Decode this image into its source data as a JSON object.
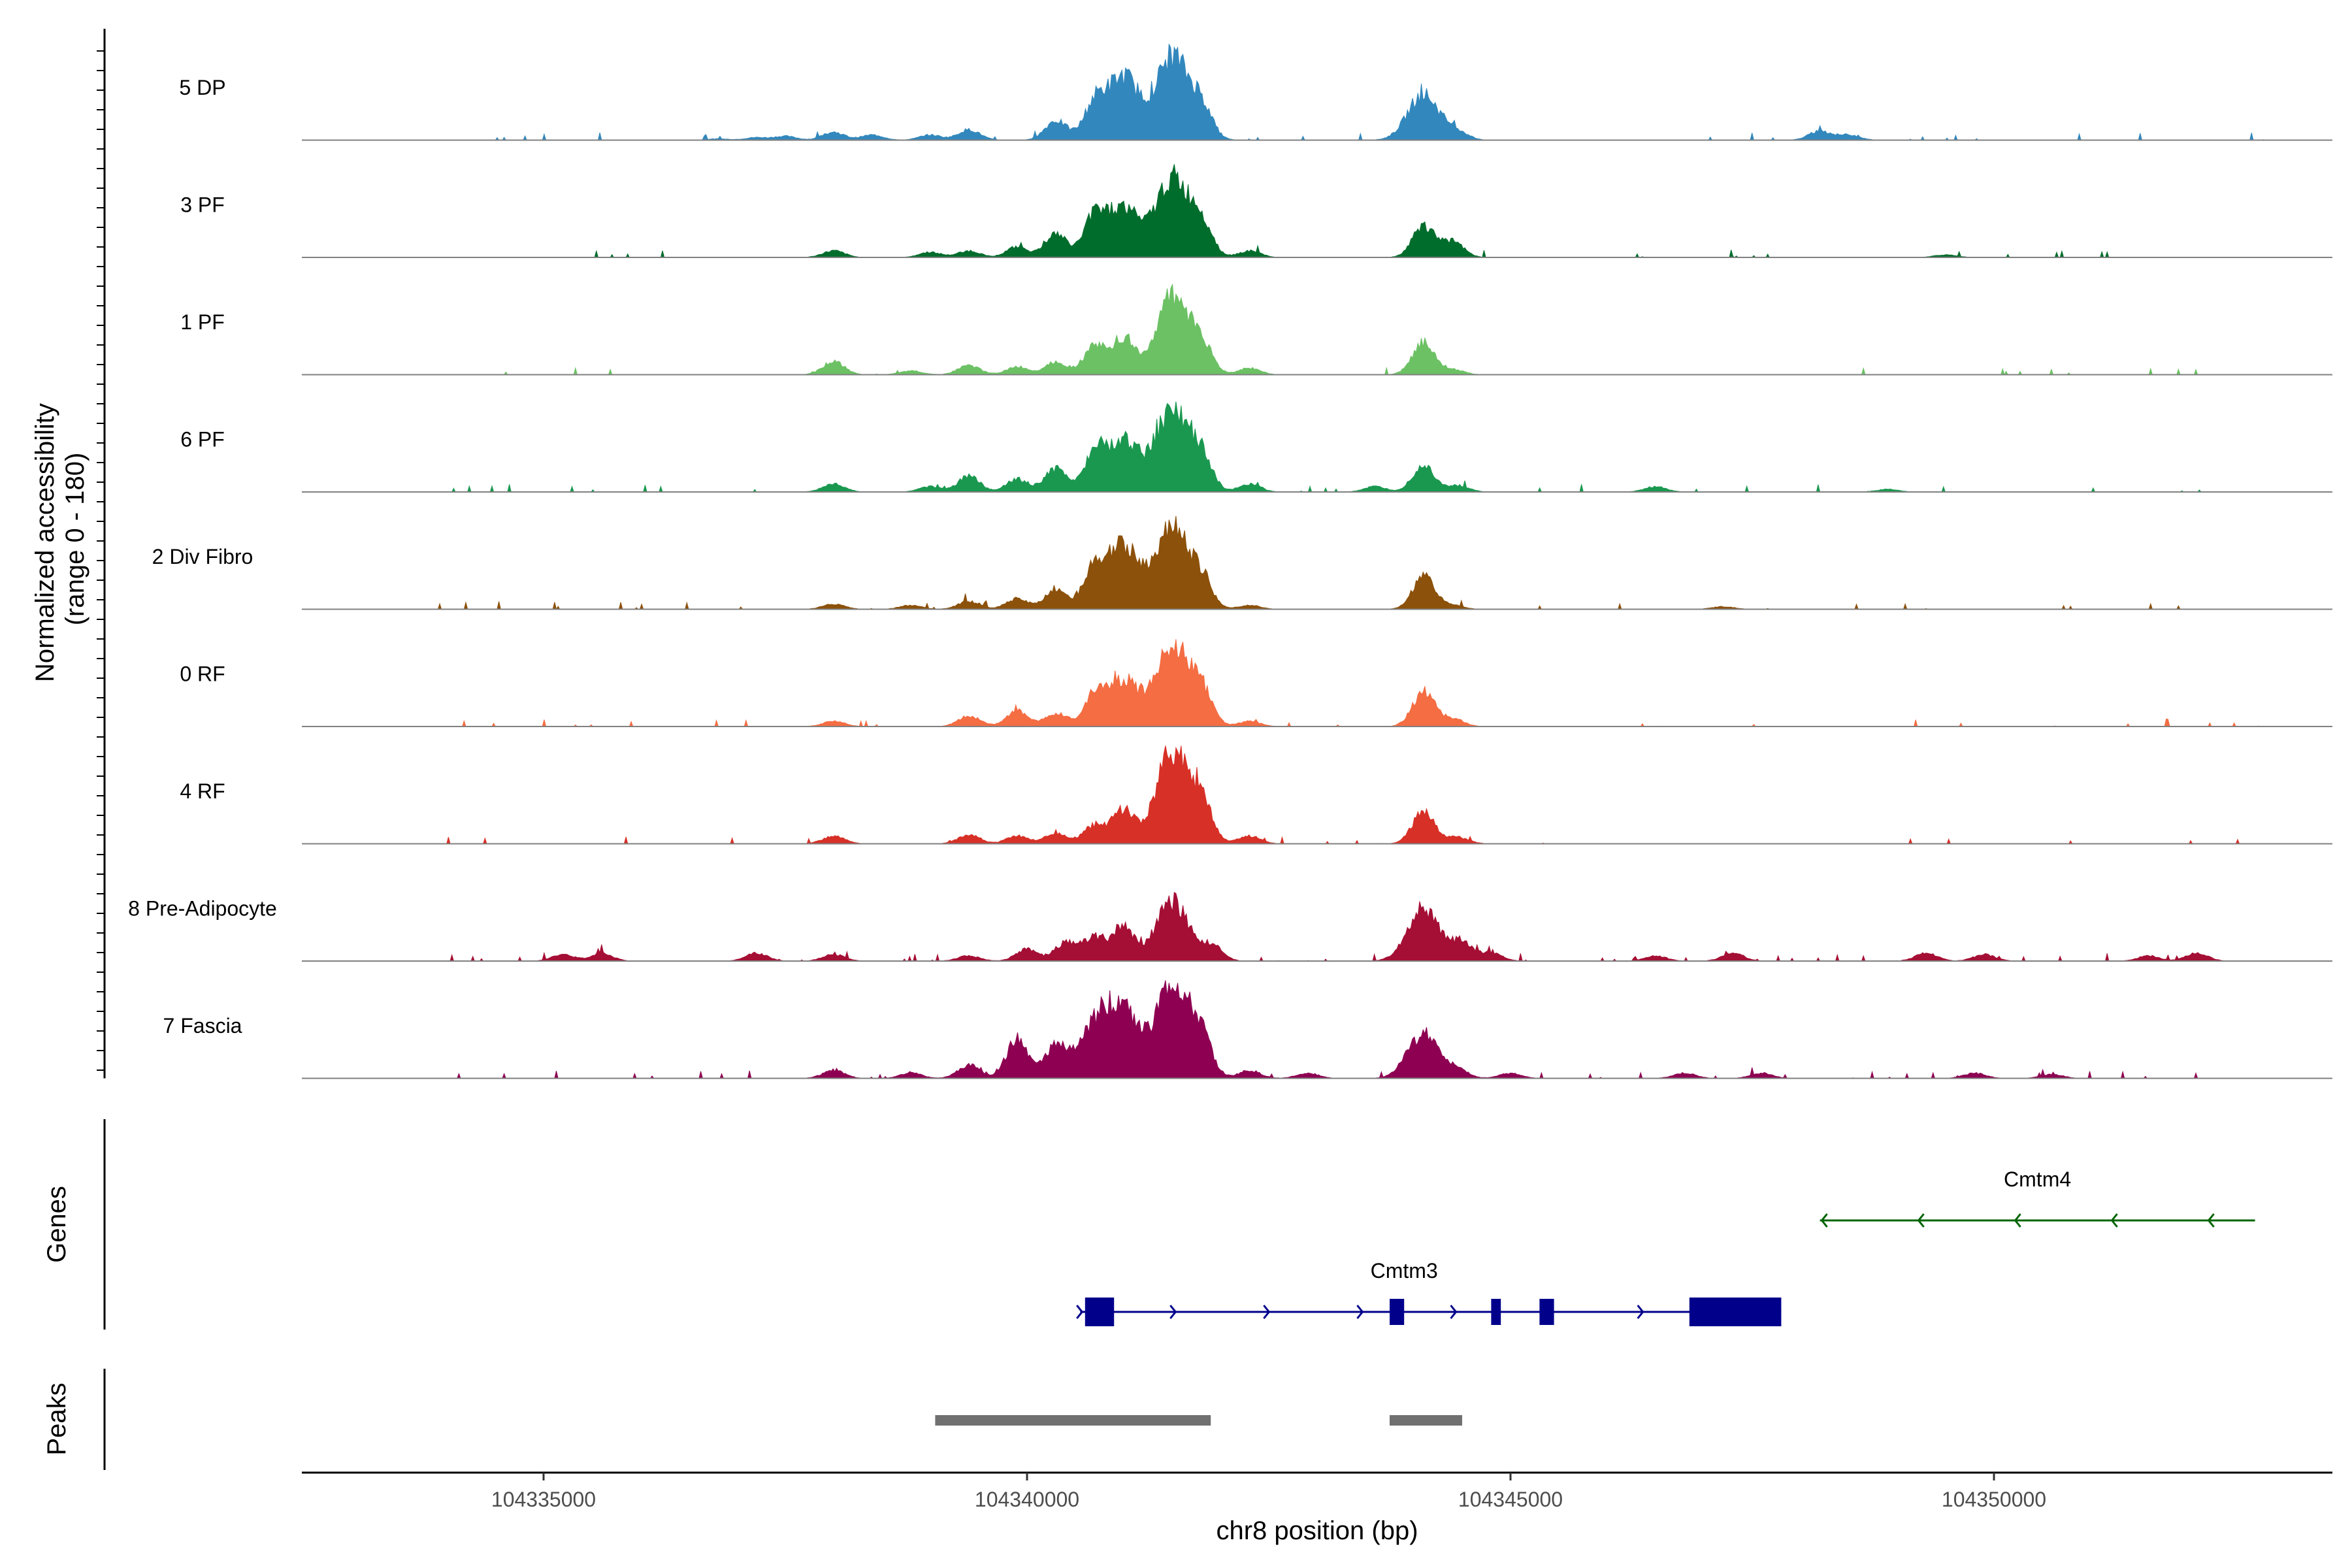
{
  "chart_data": {
    "type": "area",
    "title": "",
    "ylabel_line1": "Normalized accessibility",
    "ylabel_line2": "(range 0 - 180)",
    "y_range": [
      0,
      180
    ],
    "xlabel": "chr8 position (bp)",
    "xlim": [
      104332500,
      104353500
    ],
    "x_ticks": [
      104335000,
      104340000,
      104345000,
      104350000
    ],
    "x_tick_labels": [
      "104335000",
      "104340000",
      "104345000",
      "104350000"
    ],
    "tracks": [
      {
        "name": "5 DP",
        "color": "#3288bd",
        "noise": 0.025,
        "peaks": [
          [
            104336800,
            1
          ],
          [
            104337200,
            2
          ],
          [
            104337500,
            3
          ],
          [
            104338000,
            6
          ],
          [
            104338400,
            4
          ],
          [
            104339000,
            4
          ],
          [
            104339400,
            8
          ],
          [
            104340300,
            15
          ],
          [
            104340700,
            26
          ],
          [
            104341000,
            48
          ],
          [
            104341500,
            64
          ],
          [
            104341800,
            24
          ],
          [
            104344100,
            35
          ],
          [
            104344450,
            6
          ],
          [
            104348200,
            7
          ],
          [
            104348500,
            4
          ]
        ]
      },
      {
        "name": "3 PF",
        "color": "#006d2c",
        "noise": 0.03,
        "peaks": [
          [
            104338000,
            5
          ],
          [
            104339000,
            4
          ],
          [
            104339400,
            5
          ],
          [
            104339900,
            8
          ],
          [
            104340300,
            18
          ],
          [
            104340700,
            30
          ],
          [
            104341000,
            38
          ],
          [
            104341500,
            60
          ],
          [
            104341800,
            26
          ],
          [
            104342300,
            5
          ],
          [
            104344100,
            24
          ],
          [
            104344400,
            12
          ],
          [
            104349500,
            2
          ]
        ]
      },
      {
        "name": "1 PF",
        "color": "#6cc164",
        "noise": 0.025,
        "peaks": [
          [
            104338000,
            10
          ],
          [
            104338800,
            3
          ],
          [
            104339400,
            7
          ],
          [
            104339900,
            6
          ],
          [
            104340300,
            10
          ],
          [
            104340700,
            22
          ],
          [
            104341000,
            28
          ],
          [
            104341500,
            60
          ],
          [
            104341800,
            22
          ],
          [
            104342300,
            5
          ],
          [
            104344100,
            25
          ],
          [
            104344400,
            4
          ]
        ]
      },
      {
        "name": "6 PF",
        "color": "#1a9850",
        "noise": 0.03,
        "peaks": [
          [
            104338000,
            6
          ],
          [
            104339000,
            4
          ],
          [
            104339400,
            12
          ],
          [
            104339900,
            10
          ],
          [
            104340300,
            18
          ],
          [
            104340700,
            26
          ],
          [
            104341000,
            40
          ],
          [
            104341500,
            64
          ],
          [
            104341800,
            26
          ],
          [
            104342300,
            6
          ],
          [
            104343600,
            4
          ],
          [
            104344100,
            20
          ],
          [
            104344450,
            5
          ],
          [
            104346500,
            4
          ],
          [
            104348900,
            2
          ]
        ]
      },
      {
        "name": "2 Div Fibro",
        "color": "#8c510a",
        "noise": 0.02,
        "peaks": [
          [
            104338000,
            4
          ],
          [
            104338800,
            3
          ],
          [
            104339400,
            6
          ],
          [
            104339900,
            8
          ],
          [
            104340300,
            16
          ],
          [
            104340700,
            30
          ],
          [
            104341000,
            48
          ],
          [
            104341500,
            62
          ],
          [
            104341800,
            22
          ],
          [
            104342300,
            3
          ],
          [
            104344100,
            25
          ],
          [
            104344400,
            3
          ],
          [
            104347200,
            2
          ]
        ]
      },
      {
        "name": "0 RF",
        "color": "#f46d43",
        "noise": 0.02,
        "peaks": [
          [
            104338000,
            4
          ],
          [
            104339400,
            8
          ],
          [
            104339900,
            12
          ],
          [
            104340300,
            10
          ],
          [
            104340700,
            22
          ],
          [
            104341000,
            35
          ],
          [
            104341500,
            64
          ],
          [
            104341800,
            26
          ],
          [
            104342300,
            4
          ],
          [
            104344100,
            27
          ],
          [
            104344400,
            6
          ]
        ]
      },
      {
        "name": "4 RF",
        "color": "#d73027",
        "noise": 0.02,
        "peaks": [
          [
            104338000,
            6
          ],
          [
            104339400,
            7
          ],
          [
            104339900,
            6
          ],
          [
            104340300,
            8
          ],
          [
            104340700,
            14
          ],
          [
            104341000,
            26
          ],
          [
            104341500,
            70
          ],
          [
            104341800,
            30
          ],
          [
            104342300,
            6
          ],
          [
            104344100,
            25
          ],
          [
            104344450,
            5
          ]
        ]
      },
      {
        "name": "8 Pre-Adipocyte",
        "color": "#a50f35",
        "noise": 0.06,
        "peaks": [
          [
            104335200,
            5
          ],
          [
            104335600,
            6
          ],
          [
            104337200,
            6
          ],
          [
            104338000,
            5
          ],
          [
            104339400,
            4
          ],
          [
            104340000,
            9
          ],
          [
            104340400,
            14
          ],
          [
            104340700,
            18
          ],
          [
            104341000,
            26
          ],
          [
            104341500,
            46
          ],
          [
            104341900,
            12
          ],
          [
            104344100,
            40
          ],
          [
            104344500,
            14
          ],
          [
            104344800,
            6
          ],
          [
            104346500,
            4
          ],
          [
            104347300,
            6
          ],
          [
            104349300,
            6
          ],
          [
            104349900,
            5
          ],
          [
            104351600,
            4
          ],
          [
            104352100,
            6
          ]
        ]
      },
      {
        "name": "7 Fascia",
        "color": "#8e0152",
        "noise": 0.035,
        "peaks": [
          [
            104338000,
            6
          ],
          [
            104338800,
            4
          ],
          [
            104339400,
            10
          ],
          [
            104339900,
            30
          ],
          [
            104340300,
            24
          ],
          [
            104340700,
            38
          ],
          [
            104341000,
            52
          ],
          [
            104341500,
            74
          ],
          [
            104341800,
            30
          ],
          [
            104342300,
            6
          ],
          [
            104342900,
            4
          ],
          [
            104344100,
            34
          ],
          [
            104344450,
            6
          ],
          [
            104345000,
            4
          ],
          [
            104346800,
            4
          ],
          [
            104347600,
            4
          ],
          [
            104349800,
            4
          ],
          [
            104350600,
            3
          ]
        ]
      }
    ],
    "genes_label": "Genes",
    "genes": [
      {
        "name": "Cmtm4",
        "color": "#006400",
        "strand": "-",
        "start": 104348200,
        "end": 104352700,
        "exons": []
      },
      {
        "name": "Cmtm3",
        "color": "#00008b",
        "strand": "+",
        "start": 104340550,
        "end": 104347800,
        "exons": [
          [
            104340600,
            104340900
          ],
          [
            104343750,
            104343900
          ],
          [
            104344800,
            104344900
          ],
          [
            104345300,
            104345450
          ],
          [
            104346850,
            104347800
          ]
        ]
      }
    ],
    "peaks_label": "Peaks",
    "peak_color": "#707070",
    "peak_regions": [
      [
        104339050,
        104341900
      ],
      [
        104343750,
        104344500
      ]
    ]
  }
}
